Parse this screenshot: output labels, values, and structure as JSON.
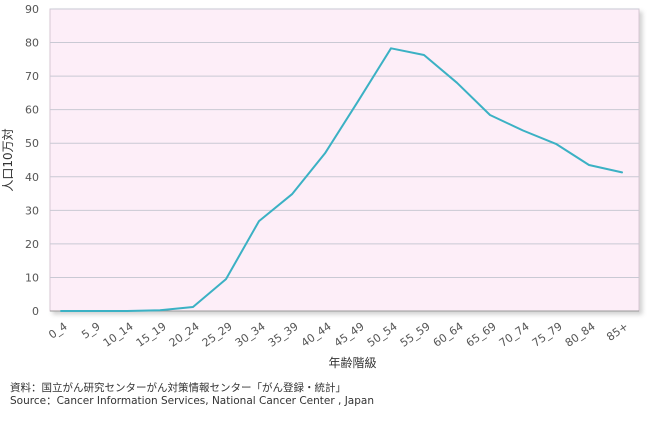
{
  "chart_data": {
    "type": "line",
    "categories": [
      "0_4",
      "5_9",
      "10_14",
      "15_19",
      "20_24",
      "25_29",
      "30_34",
      "35_39",
      "40_44",
      "45_49",
      "50_54",
      "55_59",
      "60_64",
      "65_69",
      "70_74",
      "75_79",
      "80_84",
      "85+"
    ],
    "series": [
      {
        "values": [
          0,
          0,
          0,
          0.2,
          1.2,
          9.5,
          26.8,
          34.8,
          47,
          62.5,
          78.3,
          76.3,
          68,
          58.4,
          53.8,
          49.8,
          43.5,
          41.3
        ]
      }
    ],
    "title": "",
    "xlabel": "年齢階級",
    "ylabel": "人口10万対",
    "ylim": [
      0,
      90
    ],
    "yticks": [
      "0",
      "10",
      "20",
      "30",
      "40",
      "50",
      "60",
      "70",
      "80",
      "90"
    ],
    "grid": true
  },
  "colors": {
    "plot_background": "#fdeef8",
    "grid": "#c9c9d4",
    "line": "#3bb1c4",
    "axis_text": "#555555"
  },
  "footer": {
    "source_jp": "資料：国立がん研究センターがん対策情報センター「がん登録・統計」",
    "source_en": "Source：Cancer Information Services, National Cancer Center , Japan"
  }
}
